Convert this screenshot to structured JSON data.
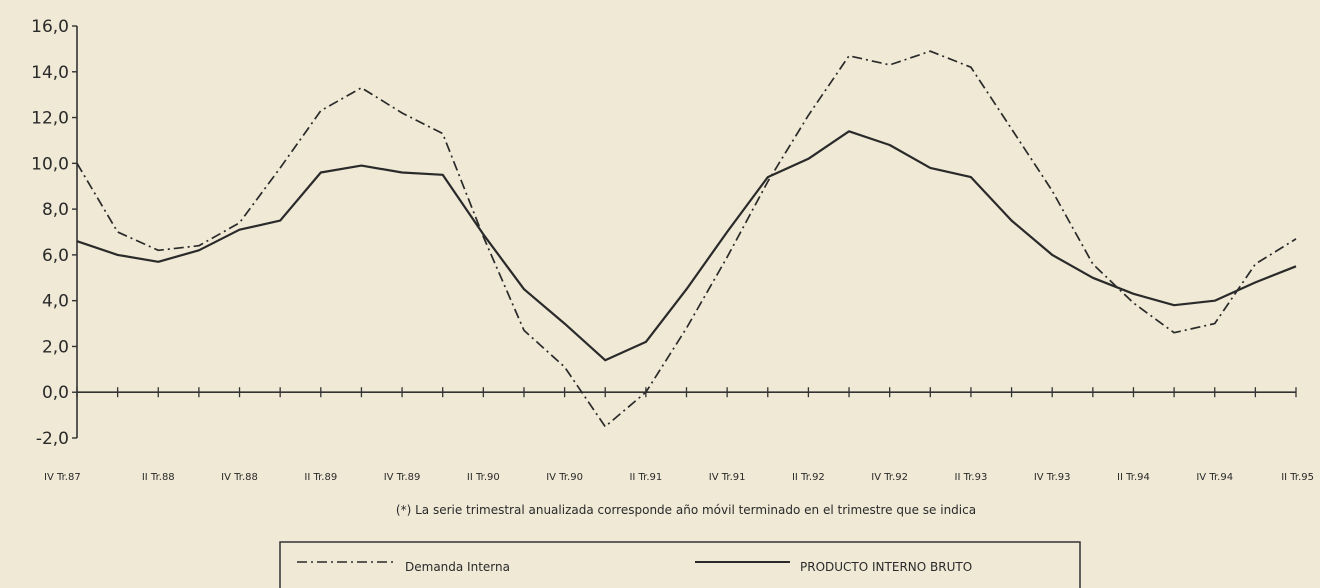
{
  "chart_data": {
    "type": "line",
    "ylim": [
      -2.0,
      16.0
    ],
    "yticks": [
      "16,0",
      "14,0",
      "12,0",
      "10,0",
      "8,0",
      "6,0",
      "4,0",
      "2,0",
      "0,0",
      "-2,0"
    ],
    "x_labels": [
      "IV Tr.87",
      "II Tr.88",
      "IV Tr.88",
      "II Tr.89",
      "IV Tr.89",
      "II Tr.90",
      "IV Tr.90",
      "II Tr.91",
      "IV Tr.91",
      "II Tr.92",
      "IV Tr.92",
      "II Tr.93",
      "IV Tr.93",
      "II Tr.94",
      "IV Tr.94",
      "II Tr.95"
    ],
    "note": "(*) La serie trimestral anualizada corresponde año móvil terminado en el trimestre que se indica",
    "series": [
      {
        "name": "Demanda Interna",
        "style": "dash-dot",
        "values": [
          10.0,
          7.0,
          6.2,
          6.4,
          7.4,
          9.8,
          12.3,
          13.3,
          12.2,
          11.3,
          6.8,
          2.7,
          1.1,
          -1.5,
          0.0,
          2.8,
          5.9,
          9.2,
          12.1,
          14.7,
          14.3,
          14.9,
          14.2,
          11.5,
          8.8,
          5.6,
          3.9,
          2.6,
          3.0,
          5.6,
          6.7
        ]
      },
      {
        "name": "PRODUCTO INTERNO BRUTO",
        "style": "solid",
        "values": [
          6.6,
          6.0,
          5.7,
          6.2,
          7.1,
          7.5,
          9.6,
          9.9,
          9.6,
          9.5,
          6.9,
          4.5,
          3.0,
          1.4,
          2.2,
          4.5,
          7.0,
          9.4,
          10.2,
          11.4,
          10.8,
          9.8,
          9.4,
          7.5,
          6.0,
          5.0,
          4.3,
          3.8,
          4.0,
          4.8,
          5.5
        ]
      }
    ],
    "colors": {
      "line": "#2a2a2a",
      "axis": "#333333",
      "background": "#efe9d6"
    },
    "legend_position": "bottom"
  }
}
